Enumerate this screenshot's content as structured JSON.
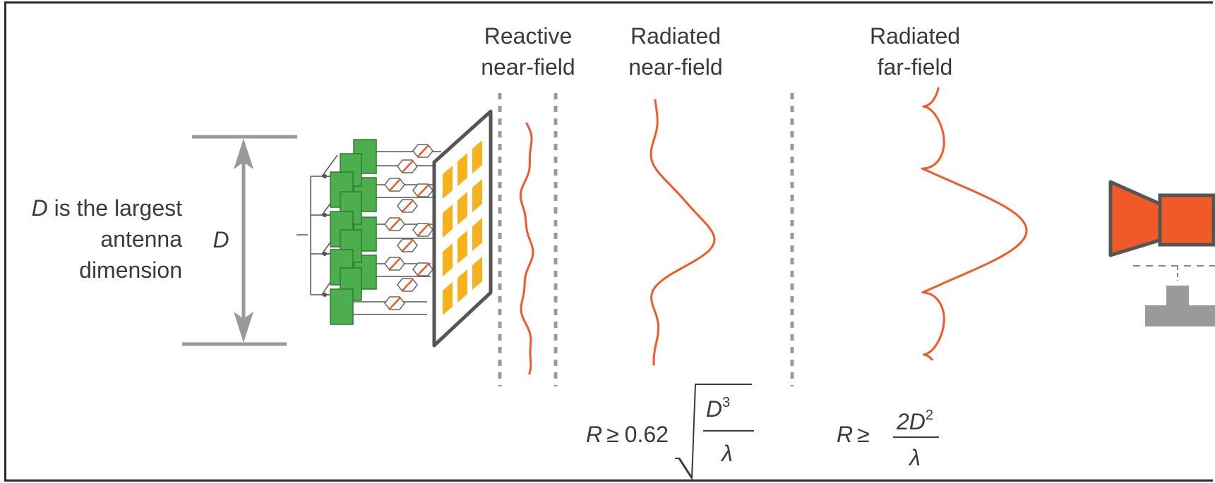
{
  "zones": {
    "reactive": [
      "Reactive",
      "near-field"
    ],
    "radiated_near": [
      "Radiated",
      "near-field"
    ],
    "far_field": [
      "Radiated",
      "far-field"
    ]
  },
  "dimension_note": {
    "symbol": "D",
    "line1_rest": " is the largest",
    "line2": "antenna",
    "line3": "dimension"
  },
  "arrow_label": "D",
  "formula_near": {
    "lhs": "R",
    "op": "≥",
    "coef": "0.62",
    "num_base": "D",
    "num_exp": "3",
    "den": "λ"
  },
  "formula_far": {
    "lhs": "R",
    "op": "≥",
    "num": "2D",
    "num_exp": "2",
    "den": "λ"
  },
  "colors": {
    "wave": "#f05a28",
    "element_green": "#4cae4c",
    "patch_gold": "#f5b21c",
    "gray": "#9a9a9a",
    "dark": "#444444",
    "horn": "#f05a28"
  }
}
